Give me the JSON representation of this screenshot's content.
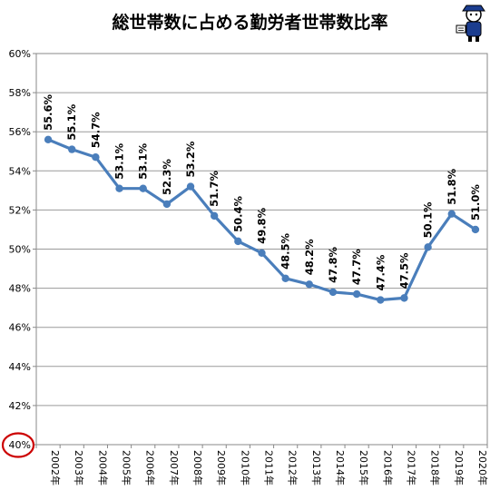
{
  "chart_data": {
    "type": "line",
    "title": "総世帯数に占める勤労者世帯数比率",
    "xlabel": "",
    "ylabel": "",
    "categories": [
      "2002年",
      "2003年",
      "2004年",
      "2005年",
      "2006年",
      "2007年",
      "2008年",
      "2009年",
      "2010年",
      "2011年",
      "2012年",
      "2013年",
      "2014年",
      "2015年",
      "2016年",
      "2017年",
      "2018年",
      "2019年",
      "2020年"
    ],
    "series": [
      {
        "values": [
          55.6,
          55.1,
          54.7,
          53.1,
          53.1,
          52.3,
          53.2,
          51.7,
          50.4,
          49.8,
          48.5,
          48.2,
          47.8,
          47.7,
          47.4,
          47.5,
          50.1,
          51.8,
          51.0
        ]
      }
    ],
    "data_labels": [
      "55.6%",
      "55.1%",
      "54.7%",
      "53.1%",
      "53.1%",
      "52.3%",
      "53.2%",
      "51.7%",
      "50.4%",
      "49.8%",
      "48.5%",
      "48.2%",
      "47.8%",
      "47.7%",
      "47.4%",
      "47.5%",
      "50.1%",
      "51.8%",
      "51.0%"
    ],
    "y_ticks": [
      40,
      42,
      44,
      46,
      48,
      50,
      52,
      54,
      56,
      58,
      60
    ],
    "y_tick_labels": [
      "40%",
      "42%",
      "44%",
      "46%",
      "48%",
      "50%",
      "52%",
      "54%",
      "56%",
      "58%",
      "60%"
    ],
    "ylim": [
      40,
      60
    ],
    "grid": "horizontal",
    "legend": "none",
    "line_color": "#4a7ebb",
    "highlight": {
      "target": "y_tick_40",
      "shape": "circle",
      "color": "#cc0000"
    }
  },
  "mascot": {
    "icon": "mascot-icon"
  }
}
